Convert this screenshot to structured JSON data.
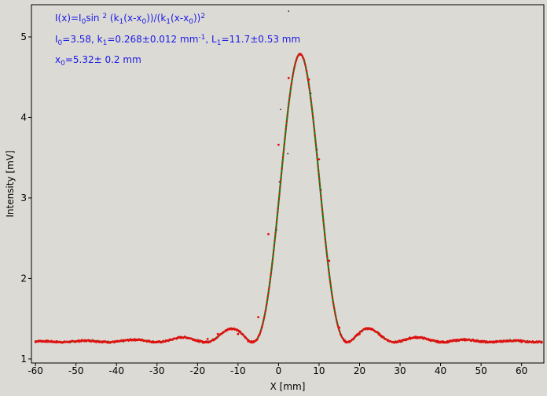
{
  "chart_data": {
    "type": "scatter",
    "xlabel": "X [mm]",
    "ylabel": "Intensity [mV]",
    "xlim": [
      -61,
      65.5
    ],
    "ylim": [
      0.95,
      5.4
    ],
    "x_ticks": [
      -60,
      -50,
      -40,
      -30,
      -20,
      -10,
      0,
      10,
      20,
      30,
      40,
      50,
      60
    ],
    "y_ticks": [
      1,
      2,
      3,
      4,
      5
    ],
    "grid": false,
    "colors": {
      "measured": "#e01010",
      "fit": "#2a7a1a",
      "annotation": "#1a1ae6"
    },
    "annotation_lines": [
      [
        {
          "t": "I(x)=I",
          "s": false
        },
        {
          "t": "0",
          "s": true
        },
        {
          "t": "sin ",
          "s": false
        },
        {
          "t": "2",
          "s": "sup"
        },
        {
          "t": " (k",
          "s": false
        },
        {
          "t": "1",
          "s": true
        },
        {
          "t": "(x-x",
          "s": false
        },
        {
          "t": "0",
          "s": true
        },
        {
          "t": "))/(k",
          "s": false
        },
        {
          "t": "1",
          "s": true
        },
        {
          "t": "(x-x",
          "s": false
        },
        {
          "t": "0",
          "s": true
        },
        {
          "t": "))",
          "s": false
        },
        {
          "t": "2",
          "s": "sup"
        }
      ],
      [
        {
          "t": "I",
          "s": false
        },
        {
          "t": "0",
          "s": true
        },
        {
          "t": "=3.58,  k",
          "s": false
        },
        {
          "t": "1",
          "s": true
        },
        {
          "t": "=0.268±0.012 mm",
          "s": false
        },
        {
          "t": "-1",
          "s": "sup"
        },
        {
          "t": ",   L",
          "s": false
        },
        {
          "t": "1",
          "s": true
        },
        {
          "t": "=11.7±0.53 mm",
          "s": false
        }
      ],
      [
        {
          "t": "x",
          "s": false
        },
        {
          "t": "0",
          "s": true
        },
        {
          "t": "=5.32±   0.2 mm",
          "s": false
        }
      ]
    ],
    "model": {
      "function": "B + I0*sin^2(k1*(x-x0))/(k1*(x-x0))^2",
      "I0": 3.58,
      "k1": 0.268,
      "x0": 5.32,
      "background": 1.21
    },
    "series": [
      {
        "label_ref": "measured",
        "x": [
          -60,
          -55,
          -50,
          -45,
          -40,
          -35,
          -30,
          -25,
          -22.5,
          -20,
          -17.5,
          -15,
          -12.5,
          -11.5,
          -10,
          -7.5,
          -5,
          -2.5,
          0,
          2.5,
          5.32,
          7.5,
          10,
          12.5,
          15,
          17.5,
          20,
          22,
          25,
          30,
          34,
          40,
          46,
          50,
          56,
          60,
          65
        ],
        "y": [
          1.21,
          1.21,
          1.22,
          1.21,
          1.22,
          1.24,
          1.21,
          1.26,
          1.26,
          1.22,
          1.25,
          1.31,
          1.37,
          1.37,
          1.31,
          1.22,
          1.52,
          2.55,
          3.66,
          4.49,
          4.79,
          4.47,
          3.48,
          2.22,
          1.39,
          1.21,
          1.31,
          1.37,
          1.3,
          1.22,
          1.26,
          1.21,
          1.23,
          1.21,
          1.22,
          1.21,
          1.21
        ]
      }
    ]
  }
}
